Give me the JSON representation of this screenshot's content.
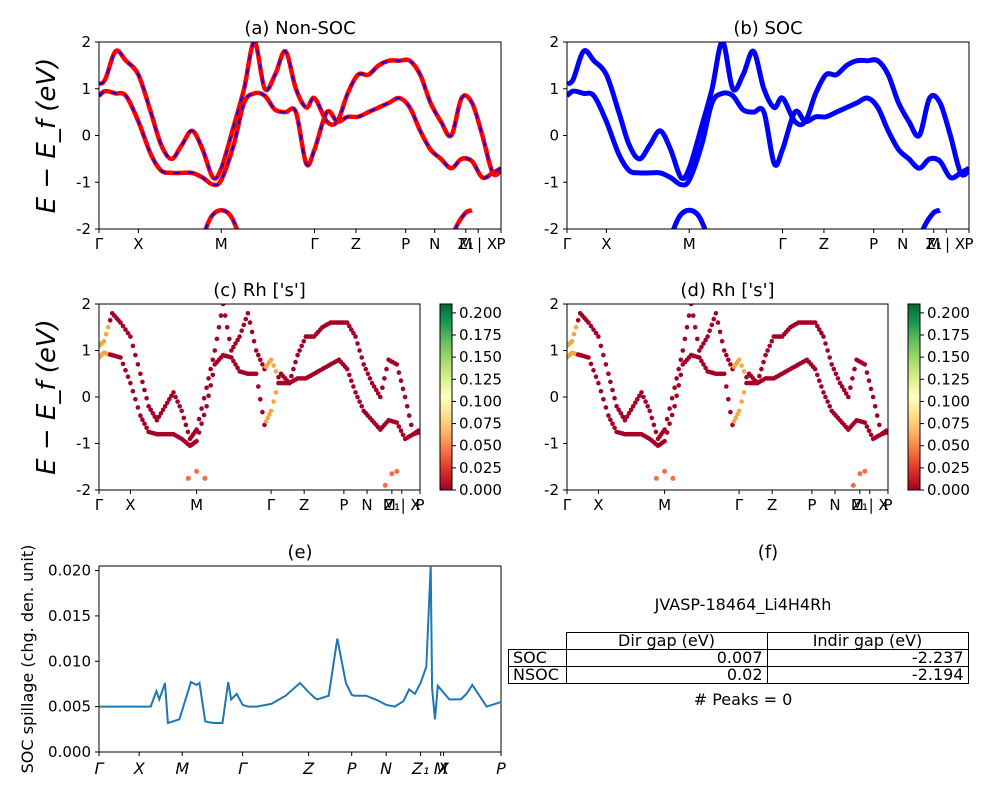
{
  "y_label_energy": "E − E_f (eV)",
  "high_sym_labels": [
    "Γ",
    "X",
    "M",
    "Γ",
    "Z",
    "P",
    "N",
    "Z₁",
    "M | X",
    "P"
  ],
  "spillage_labels": [
    "Γ",
    "X",
    "M",
    "Γ",
    "Z",
    "P",
    "N",
    "Z₁",
    "M",
    "X",
    "P"
  ],
  "colors": {
    "nonsoc_red": "#ff0000",
    "nonsoc_blue": "#0000ff",
    "soc_blue": "#0000ff",
    "spillage_line": "#1f77b4"
  },
  "chart_data": [
    {
      "panel": "a",
      "type": "line",
      "title": "(a) Non-SOC",
      "ylabel": "E − E_f (eV)",
      "ylim": [
        -2,
        2
      ],
      "yticks": [
        -2,
        -1,
        0,
        1,
        2
      ],
      "xticks": [
        "Γ",
        "X",
        "M",
        "Γ",
        "Z",
        "P",
        "N",
        "Z₁",
        "M | X",
        "P"
      ],
      "series": [
        {
          "x": [
            0,
            0.3,
            0.8,
            1.3,
            1.9,
            2.5,
            3.0,
            3.5,
            4.0,
            4.5,
            5.0,
            5.5,
            5.9,
            6.5,
            7.0,
            7.5,
            8.0,
            8.5,
            9.0,
            9.5,
            10.0,
            10.4,
            11.0,
            11.5,
            12.0,
            12.5,
            13.0,
            13.5,
            14.0,
            14.5,
            15.0,
            15.5,
            16.0,
            16.5,
            17.0,
            17.5,
            18.0,
            18.5,
            19.0,
            19.4
          ],
          "y": [
            1.1,
            1.2,
            1.8,
            1.6,
            1.3,
            0.5,
            -0.2,
            -0.5,
            -0.2,
            0.1,
            -0.3,
            -0.9,
            -0.7,
            0.2,
            1.0,
            2.0,
            1.0,
            1.3,
            1.8,
            1.0,
            0.6,
            0.8,
            0.3,
            0.3,
            0.9,
            1.3,
            1.3,
            1.5,
            1.6,
            1.6,
            1.6,
            1.3,
            0.7,
            0.3,
            0.0,
            0.8,
            0.7,
            0.0,
            -0.8,
            -0.75
          ]
        },
        {
          "x": [
            0,
            0.3,
            0.8,
            1.3,
            1.9,
            2.5,
            3.0,
            3.5,
            4.0,
            4.5,
            5.0,
            5.5,
            5.9,
            6.5,
            7.0,
            7.5,
            8.0,
            8.5,
            9.0,
            9.5,
            10.0,
            10.4,
            11.0,
            11.5,
            12.0,
            12.5,
            13.0,
            13.5,
            14.0,
            14.5,
            15.0,
            15.5,
            16.0,
            16.5,
            17.0,
            17.5,
            18.0,
            18.5,
            19.0,
            19.4
          ],
          "y": [
            0.85,
            0.95,
            0.9,
            0.85,
            0.3,
            -0.4,
            -0.75,
            -0.8,
            -0.8,
            -0.8,
            -0.9,
            -1.05,
            -0.95,
            -0.2,
            0.7,
            0.9,
            0.85,
            0.55,
            0.5,
            0.5,
            -0.6,
            -0.3,
            0.5,
            0.3,
            0.4,
            0.4,
            0.5,
            0.6,
            0.7,
            0.8,
            0.6,
            0.1,
            -0.3,
            -0.5,
            -0.7,
            -0.5,
            -0.55,
            -0.9,
            -0.8,
            -0.7
          ]
        }
      ]
    },
    {
      "panel": "b",
      "type": "line",
      "title": "(b) SOC",
      "ylim": [
        -2,
        2
      ],
      "yticks": [
        -2,
        -1,
        0,
        1,
        2
      ],
      "xticks": [
        "Γ",
        "X",
        "M",
        "Γ",
        "Z",
        "P",
        "N",
        "Z₁",
        "M | X",
        "P"
      ]
    },
    {
      "panel": "c",
      "type": "scatter",
      "title": "(c)  Rh ['s']",
      "ylabel": "E − E_f (eV)",
      "ylim": [
        -2,
        2
      ],
      "yticks": [
        -2,
        -1,
        0,
        1,
        2
      ],
      "xticks": [
        "Γ",
        "X",
        "M",
        "Γ",
        "Z",
        "P",
        "N",
        "Z₁",
        "M | X",
        "P"
      ],
      "colorbar": {
        "ticks": [
          "0.000",
          "0.025",
          "0.050",
          "0.075",
          "0.100",
          "0.125",
          "0.150",
          "0.175",
          "0.200"
        ],
        "range": [
          0,
          0.21
        ],
        "colormap": "RdYlGn"
      }
    },
    {
      "panel": "d",
      "type": "scatter",
      "title": "(d) Rh ['s']",
      "ylim": [
        -2,
        2
      ],
      "yticks": [
        -2,
        -1,
        0,
        1,
        2
      ],
      "xticks": [
        "Γ",
        "X",
        "M",
        "Γ",
        "Z",
        "P",
        "N",
        "Z₁",
        "M | X",
        "P"
      ],
      "colorbar": {
        "ticks": [
          "0.000",
          "0.025",
          "0.050",
          "0.075",
          "0.100",
          "0.125",
          "0.150",
          "0.175",
          "0.200"
        ],
        "range": [
          0,
          0.21
        ],
        "colormap": "RdYlGn"
      }
    },
    {
      "panel": "e",
      "type": "line",
      "title": "(e)",
      "ylabel": "SOC spillage (chg. den. unit)",
      "ylim": [
        0,
        0.0205
      ],
      "yticks": [
        "0.000",
        "0.005",
        "0.010",
        "0.015",
        "0.020"
      ],
      "xticks": [
        "Γ",
        "X",
        "M",
        "Γ",
        "Z",
        "P",
        "N",
        "Z₁",
        "M",
        "X",
        "P"
      ],
      "x": [
        0,
        0.5,
        1,
        1.5,
        1.8,
        2.0,
        2.1,
        2.3,
        2.4,
        2.5,
        2.8,
        3.2,
        3.4,
        3.5,
        3.7,
        3.8,
        4.0,
        4.3,
        4.5,
        4.6,
        4.8,
        5.0,
        5.2,
        5.5,
        6.0,
        6.5,
        7.0,
        7.3,
        7.5,
        7.6,
        8.0,
        8.3,
        8.6,
        8.8,
        8.9,
        9.3,
        9.7,
        10.0,
        10.3,
        10.6,
        10.8,
        11.0,
        11.2,
        11.4,
        11.55,
        11.6,
        11.7,
        11.8,
        12.2,
        12.6,
        12.8,
        13.0,
        13.5,
        14.0
      ],
      "y": [
        0.005,
        0.005,
        0.005,
        0.005,
        0.005,
        0.0067,
        0.0058,
        0.0076,
        0.0032,
        0.0033,
        0.0036,
        0.0077,
        0.0074,
        0.0076,
        0.0034,
        0.0033,
        0.0032,
        0.0032,
        0.0077,
        0.0058,
        0.0064,
        0.0052,
        0.005,
        0.005,
        0.0053,
        0.0062,
        0.0076,
        0.0066,
        0.006,
        0.0058,
        0.0062,
        0.0125,
        0.0076,
        0.0063,
        0.0062,
        0.0062,
        0.0057,
        0.0052,
        0.005,
        0.0056,
        0.0069,
        0.0064,
        0.0076,
        0.0094,
        0.0205,
        0.007,
        0.0036,
        0.0073,
        0.0058,
        0.0058,
        0.0064,
        0.0074,
        0.005,
        0.0055
      ]
    }
  ],
  "panel_f": {
    "title": "(f)",
    "material_id": "JVASP-18464_Li4H4Rh",
    "columns": [
      "Dir gap (eV)",
      "Indir gap (eV)"
    ],
    "rows": [
      {
        "label": "SOC",
        "dir": "0.007",
        "indir": "-2.237"
      },
      {
        "label": "NSOC",
        "dir": "0.02",
        "indir": "-2.194"
      }
    ],
    "peaks_text": "# Peaks = 0"
  }
}
